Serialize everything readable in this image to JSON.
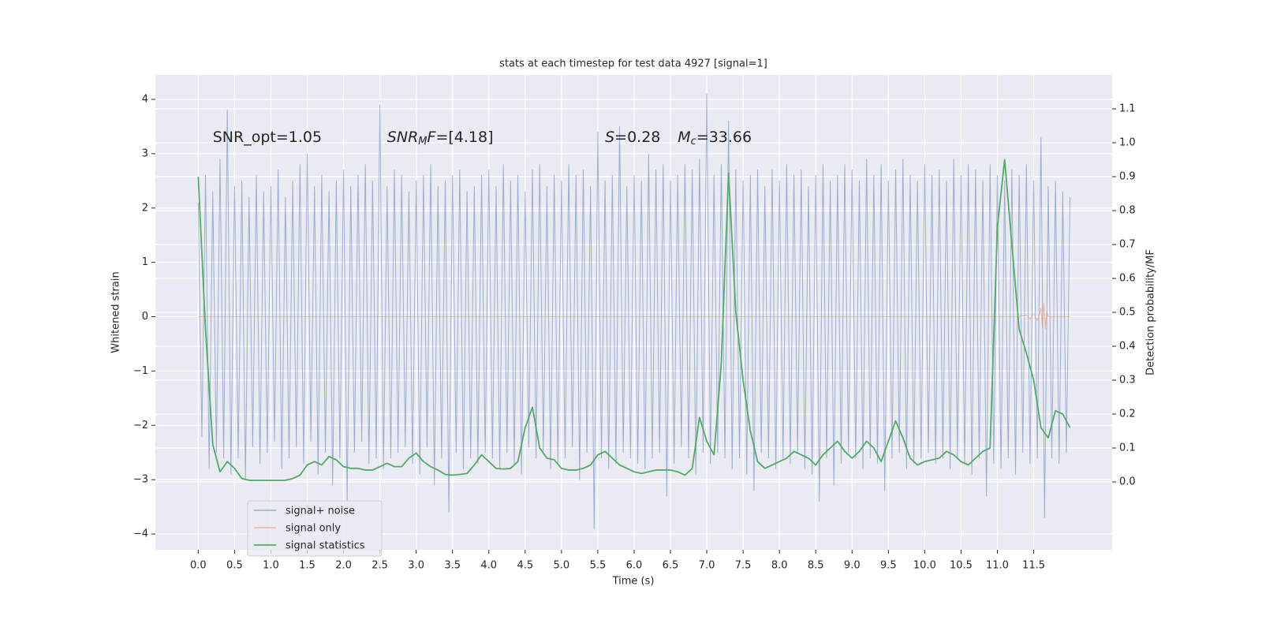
{
  "chart_data": {
    "type": "line",
    "title": "stats at each timestep for test data 4927 [signal=1]",
    "xlabel": "Time (s)",
    "ylabel": "Whitened strain",
    "y2label": "Detection probability/MF",
    "annotations": [
      [
        "SNR_opt=1.05"
      ],
      [
        "SNR",
        "M",
        "F",
        "=[4.18]"
      ],
      [
        "S",
        "=0.28"
      ],
      [
        "M",
        "c",
        "=33.66"
      ]
    ],
    "xlim": [
      -0.59,
      12.58
    ],
    "ylim": [
      -4.29,
      4.45
    ],
    "y2lim": [
      -0.2,
      1.2
    ],
    "xticks": [
      {
        "value": 0,
        "label": "0.0"
      },
      0.5,
      {
        "value": 1,
        "label": "1.0"
      },
      1.5,
      {
        "value": 2,
        "label": "2.0"
      },
      2.5,
      {
        "value": 3,
        "label": "3.0"
      },
      3.5,
      {
        "value": 4,
        "label": "4.0"
      },
      4.5,
      {
        "value": 5,
        "label": "5.0"
      },
      5.5,
      {
        "value": 6,
        "label": "6.0"
      },
      6.5,
      {
        "value": 7,
        "label": "7.0"
      },
      7.5,
      {
        "value": 8,
        "label": "8.0"
      },
      8.5,
      {
        "value": 9,
        "label": "9.0"
      },
      9.5,
      {
        "value": 10,
        "label": "10.0"
      },
      10.5,
      {
        "value": 11,
        "label": "11.0"
      },
      11.5
    ],
    "yticks": [
      {
        "value": -4,
        "label": "−4"
      },
      {
        "value": -3,
        "label": "−3"
      },
      {
        "value": -2,
        "label": "−2"
      },
      {
        "value": -1,
        "label": "−1"
      },
      0,
      1,
      2,
      3,
      4
    ],
    "y2ticks": [
      {
        "value": 0,
        "label": "0.0"
      },
      0.1,
      0.2,
      0.3,
      0.4,
      0.5,
      0.6,
      0.7,
      0.8,
      0.9,
      {
        "value": 1,
        "label": "1.0"
      },
      1.1
    ],
    "grid": true,
    "legend": "lower left",
    "series": [
      {
        "name": "signal+ noise",
        "color": "#4c72b0",
        "x": [
          0,
          0.05,
          0.1,
          0.15,
          0.2,
          0.25,
          0.3,
          0.35,
          0.4,
          0.45,
          0.5,
          0.55,
          0.6,
          0.65,
          0.7,
          0.75,
          0.8,
          0.85,
          0.9,
          0.95,
          1,
          1.05,
          1.1,
          1.15,
          1.2,
          1.25,
          1.3,
          1.35,
          1.4,
          1.45,
          1.5,
          1.55,
          1.6,
          1.65,
          1.7,
          1.75,
          1.8,
          1.85,
          1.9,
          1.95,
          2,
          2.05,
          2.1,
          2.15,
          2.2,
          2.25,
          2.3,
          2.35,
          2.4,
          2.45,
          2.5,
          2.55,
          2.6,
          2.65,
          2.7,
          2.75,
          2.8,
          2.85,
          2.9,
          2.95,
          3,
          3.05,
          3.1,
          3.15,
          3.2,
          3.25,
          3.3,
          3.35,
          3.4,
          3.45,
          3.5,
          3.55,
          3.6,
          3.65,
          3.7,
          3.75,
          3.8,
          3.85,
          3.9,
          3.95,
          4,
          4.05,
          4.1,
          4.15,
          4.2,
          4.25,
          4.3,
          4.35,
          4.4,
          4.45,
          4.5,
          4.55,
          4.6,
          4.65,
          4.7,
          4.75,
          4.8,
          4.85,
          4.9,
          4.95,
          5,
          5.05,
          5.1,
          5.15,
          5.2,
          5.25,
          5.3,
          5.35,
          5.4,
          5.45,
          5.5,
          5.55,
          5.6,
          5.65,
          5.7,
          5.75,
          5.8,
          5.85,
          5.9,
          5.95,
          6,
          6.05,
          6.1,
          6.15,
          6.2,
          6.25,
          6.3,
          6.35,
          6.4,
          6.45,
          6.5,
          6.55,
          6.6,
          6.65,
          6.7,
          6.75,
          6.8,
          6.85,
          6.9,
          6.95,
          7,
          7.05,
          7.1,
          7.15,
          7.2,
          7.25,
          7.3,
          7.35,
          7.4,
          7.45,
          7.5,
          7.55,
          7.6,
          7.65,
          7.7,
          7.75,
          7.8,
          7.85,
          7.9,
          7.95,
          8,
          8.05,
          8.1,
          8.15,
          8.2,
          8.25,
          8.3,
          8.35,
          8.4,
          8.45,
          8.5,
          8.55,
          8.6,
          8.65,
          8.7,
          8.75,
          8.8,
          8.85,
          8.9,
          8.95,
          9,
          9.05,
          9.1,
          9.15,
          9.2,
          9.25,
          9.3,
          9.35,
          9.4,
          9.45,
          9.5,
          9.55,
          9.6,
          9.65,
          9.7,
          9.75,
          9.8,
          9.85,
          9.9,
          9.95,
          10,
          10.05,
          10.1,
          10.15,
          10.2,
          10.25,
          10.3,
          10.35,
          10.4,
          10.45,
          10.5,
          10.55,
          10.6,
          10.65,
          10.7,
          10.75,
          10.8,
          10.85,
          10.9,
          10.95,
          11,
          11.05,
          11.1,
          11.15,
          11.2,
          11.25,
          11.3,
          11.35,
          11.4,
          11.45,
          11.5,
          11.55,
          11.6,
          11.65,
          11.7,
          11.75,
          11.8,
          11.85,
          11.9,
          11.95,
          12
        ],
        "values": [
          2.1,
          -2.2,
          2.6,
          -2.8,
          2.3,
          -2.5,
          2.9,
          -2.6,
          3.8,
          -2.9,
          2.4,
          -2.6,
          2.5,
          -3.0,
          2.2,
          -2.4,
          2.6,
          -2.7,
          2.3,
          -2.5,
          2.4,
          -2.3,
          2.7,
          -2.8,
          2.2,
          -2.6,
          2.5,
          -2.4,
          2.8,
          -2.7,
          3.0,
          -2.3,
          2.4,
          -2.9,
          2.6,
          -2.5,
          2.3,
          -3.1,
          2.5,
          -2.6,
          2.7,
          -3.4,
          2.4,
          -2.5,
          2.6,
          -2.3,
          2.8,
          -2.7,
          2.5,
          -2.6,
          3.9,
          -2.8,
          2.4,
          -2.6,
          2.7,
          -2.5,
          2.6,
          -2.4,
          2.3,
          -2.7,
          2.5,
          -2.9,
          2.6,
          -2.4,
          2.8,
          -3.1,
          2.4,
          -2.6,
          2.5,
          -3.6,
          2.6,
          -2.5,
          2.7,
          -2.8,
          2.3,
          -2.6,
          2.4,
          -2.7,
          2.6,
          -2.5,
          2.7,
          -2.6,
          2.4,
          -2.8,
          2.8,
          -2.5,
          2.5,
          -2.7,
          2.6,
          -2.9,
          2.3,
          -2.4,
          2.7,
          -2.6,
          2.8,
          -2.5,
          2.4,
          -2.8,
          2.6,
          -2.7,
          2.5,
          -2.6,
          2.8,
          -2.4,
          2.6,
          -3.0,
          2.7,
          -2.5,
          2.4,
          -3.9,
          3.4,
          -2.6,
          2.5,
          -2.8,
          2.6,
          -2.7,
          3.5,
          -2.5,
          2.4,
          -2.6,
          2.6,
          -2.7,
          2.5,
          -2.8,
          3.0,
          -2.6,
          2.7,
          -2.5,
          2.8,
          -3.3,
          2.5,
          -2.7,
          2.6,
          -2.4,
          2.8,
          -2.6,
          2.7,
          -2.9,
          2.9,
          -2.5,
          4.1,
          -2.7,
          2.6,
          -2.5,
          2.8,
          -2.6,
          3.6,
          -2.8,
          2.7,
          -2.6,
          2.5,
          -2.9,
          2.6,
          -3.2,
          2.7,
          -2.5,
          2.4,
          -2.6,
          2.7,
          -2.8,
          2.5,
          -2.6,
          2.8,
          -2.7,
          2.6,
          -2.5,
          2.7,
          -2.8,
          2.4,
          -2.9,
          2.6,
          -3.4,
          2.8,
          -2.6,
          2.5,
          -3.1,
          2.6,
          -2.7,
          2.8,
          -2.5,
          2.7,
          -2.6,
          2.5,
          -2.8,
          2.9,
          -2.6,
          2.6,
          -2.7,
          2.8,
          -3.2,
          2.5,
          -2.6,
          2.7,
          -2.5,
          2.9,
          -2.8,
          2.6,
          -2.7,
          2.5,
          -2.6,
          2.8,
          -2.5,
          2.6,
          -2.7,
          2.7,
          -2.6,
          2.5,
          -2.8,
          2.9,
          -2.6,
          2.6,
          -2.7,
          2.8,
          -2.9,
          2.7,
          -2.6,
          2.5,
          -3.3,
          2.8,
          -2.7,
          2.6,
          -2.8,
          2.5,
          -2.6,
          2.7,
          -2.9,
          2.6,
          -2.5,
          2.8,
          -2.7,
          2.5,
          -2.6,
          3.3,
          -3.7,
          2.4,
          -2.6,
          2.5,
          -2.7,
          2.3,
          -2.5,
          2.2
        ]
      },
      {
        "name": "signal only",
        "color": "#dd8452",
        "x": [
          0,
          11.3,
          11.4,
          11.45,
          11.5,
          11.55,
          11.6,
          11.62,
          11.64,
          11.66,
          11.68,
          11.7,
          11.75,
          12
        ],
        "values": [
          0,
          0,
          0.03,
          -0.04,
          0.06,
          -0.08,
          0.15,
          -0.2,
          0.25,
          -0.22,
          0.1,
          0,
          0,
          0
        ]
      },
      {
        "name": "signal statistics",
        "color": "#55a868",
        "axis": "y2",
        "x": [
          0,
          0.1,
          0.2,
          0.3,
          0.4,
          0.5,
          0.6,
          0.7,
          0.8,
          0.9,
          1,
          1.1,
          1.2,
          1.3,
          1.4,
          1.5,
          1.6,
          1.7,
          1.8,
          1.9,
          2,
          2.1,
          2.2,
          2.3,
          2.4,
          2.5,
          2.6,
          2.7,
          2.8,
          2.9,
          3,
          3.1,
          3.2,
          3.3,
          3.4,
          3.5,
          3.6,
          3.7,
          3.8,
          3.9,
          4,
          4.1,
          4.2,
          4.3,
          4.4,
          4.5,
          4.6,
          4.7,
          4.8,
          4.9,
          5,
          5.1,
          5.2,
          5.3,
          5.4,
          5.5,
          5.6,
          5.7,
          5.8,
          5.9,
          6,
          6.1,
          6.2,
          6.3,
          6.4,
          6.5,
          6.6,
          6.7,
          6.8,
          6.9,
          7,
          7.1,
          7.2,
          7.3,
          7.4,
          7.5,
          7.6,
          7.7,
          7.8,
          7.9,
          8,
          8.1,
          8.2,
          8.3,
          8.4,
          8.5,
          8.6,
          8.7,
          8.8,
          8.9,
          9,
          9.1,
          9.2,
          9.3,
          9.4,
          9.5,
          9.6,
          9.7,
          9.8,
          9.9,
          10,
          10.1,
          10.2,
          10.3,
          10.4,
          10.5,
          10.6,
          10.7,
          10.8,
          10.9,
          11,
          11.1,
          11.2,
          11.3,
          11.4,
          11.5,
          11.6,
          11.7,
          11.8,
          11.9,
          12
        ],
        "values": [
          0.9,
          0.45,
          0.11,
          0.03,
          0.06,
          0.04,
          0.01,
          0.005,
          0.005,
          0.005,
          0.005,
          0.005,
          0.005,
          0.01,
          0.02,
          0.05,
          0.06,
          0.05,
          0.075,
          0.065,
          0.045,
          0.04,
          0.04,
          0.035,
          0.035,
          0.045,
          0.055,
          0.045,
          0.045,
          0.07,
          0.085,
          0.06,
          0.045,
          0.035,
          0.022,
          0.02,
          0.022,
          0.025,
          0.05,
          0.08,
          0.06,
          0.04,
          0.038,
          0.04,
          0.06,
          0.16,
          0.22,
          0.1,
          0.07,
          0.065,
          0.04,
          0.035,
          0.035,
          0.04,
          0.05,
          0.08,
          0.09,
          0.07,
          0.05,
          0.04,
          0.03,
          0.025,
          0.03,
          0.035,
          0.035,
          0.035,
          0.03,
          0.02,
          0.04,
          0.19,
          0.12,
          0.08,
          0.35,
          0.91,
          0.5,
          0.3,
          0.15,
          0.06,
          0.04,
          0.05,
          0.06,
          0.07,
          0.09,
          0.08,
          0.07,
          0.05,
          0.08,
          0.1,
          0.12,
          0.09,
          0.07,
          0.09,
          0.12,
          0.1,
          0.06,
          0.12,
          0.18,
          0.13,
          0.07,
          0.05,
          0.06,
          0.065,
          0.07,
          0.09,
          0.08,
          0.06,
          0.05,
          0.07,
          0.09,
          0.1,
          0.75,
          0.95,
          0.7,
          0.45,
          0.38,
          0.3,
          0.16,
          0.13,
          0.21,
          0.2,
          0.16
        ]
      }
    ]
  }
}
